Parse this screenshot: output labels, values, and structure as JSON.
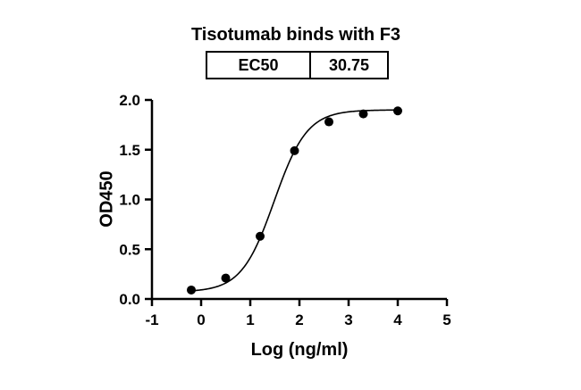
{
  "title": "Tisotumab binds with F3",
  "ec50_table": {
    "label": "EC50",
    "value": "30.75"
  },
  "chart_data": {
    "type": "scatter",
    "title": "Tisotumab binds with F3",
    "xlabel": "Log (ng/ml)",
    "ylabel": "OD450",
    "xlim": [
      -1,
      5
    ],
    "ylim": [
      0,
      2
    ],
    "x_ticks": [
      -1,
      0,
      1,
      2,
      3,
      4,
      5
    ],
    "x_tick_labels": [
      "-1",
      "0",
      "1",
      "2",
      "3",
      "4",
      "5"
    ],
    "y_ticks": [
      0,
      0.5,
      1,
      1.5,
      2
    ],
    "y_tick_labels": [
      "0.0",
      "0.5",
      "1.0",
      "1.5",
      "2.0"
    ],
    "points": {
      "x": [
        -0.2,
        0.5,
        1.2,
        1.9,
        2.6,
        3.3,
        4.0
      ],
      "y": [
        0.09,
        0.21,
        0.63,
        1.49,
        1.78,
        1.86,
        1.89
      ]
    },
    "fit": {
      "model": "4PL",
      "bottom": 0.07,
      "top": 1.9,
      "logEC50": 1.4878,
      "hill": 1.3,
      "x_start": -0.2,
      "x_end": 4.0
    },
    "ec50": 30.75,
    "grid": false,
    "legend_position": "none",
    "colors": {
      "points": "#000000",
      "curve": "#000000",
      "axes": "#000000"
    }
  }
}
